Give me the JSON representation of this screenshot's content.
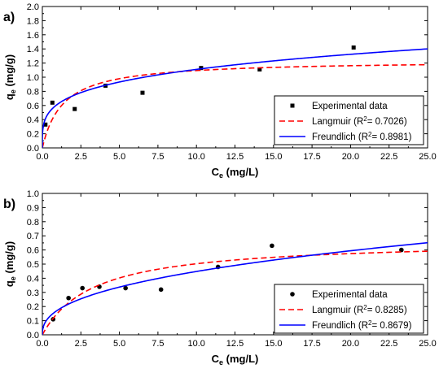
{
  "chart_data": [
    {
      "type": "scatter",
      "panel_label": "a)",
      "xlabel_main": "C",
      "xlabel_sub": "e",
      "xlabel_rest": " (mg/L)",
      "ylabel_main": "q",
      "ylabel_sub": "e",
      "ylabel_rest": " (mg/g)",
      "xlim": [
        0,
        25
      ],
      "ylim": [
        0,
        2.0
      ],
      "xticks": [
        "0.0",
        "2.5",
        "5.0",
        "7.5",
        "10.0",
        "12.5",
        "15.0",
        "17.5",
        "20.0",
        "22.5",
        "25.0"
      ],
      "yticks": [
        "0.0",
        "0.2",
        "0.4",
        "0.6",
        "0.8",
        "1.0",
        "1.2",
        "1.4",
        "1.6",
        "1.8",
        "2.0"
      ],
      "grid": false,
      "legend_position": "bottom-right",
      "marker": "square",
      "series": [
        {
          "name": "Experimental data",
          "kind": "points",
          "x": [
            0.2,
            0.65,
            2.1,
            4.1,
            6.5,
            10.3,
            14.1,
            20.2
          ],
          "y": [
            0.33,
            0.64,
            0.55,
            0.88,
            0.78,
            1.13,
            1.11,
            1.42
          ]
        },
        {
          "name": "Langmuir (R",
          "name_sup": "2",
          "name_rest": "= 0.7026)",
          "kind": "langmuir",
          "color": "#ff0000",
          "qmax": 1.24,
          "KL": 0.75
        },
        {
          "name": "Freundlich (R",
          "name_sup": "2",
          "name_rest": "= 0.8981)",
          "kind": "freundlich",
          "color": "#0000ff",
          "KF": 0.62,
          "n": 3.95
        }
      ]
    },
    {
      "type": "scatter",
      "panel_label": "b)",
      "xlabel_main": "C",
      "xlabel_sub": "e",
      "xlabel_rest": " (mg/L)",
      "ylabel_main": "q",
      "ylabel_sub": "e",
      "ylabel_rest": " (mg/g)",
      "xlim": [
        0,
        25
      ],
      "ylim": [
        0,
        1.0
      ],
      "xticks": [
        "0.0",
        "2.5",
        "5.0",
        "7.5",
        "10.0",
        "12.5",
        "15.0",
        "17.5",
        "20.0",
        "22.5",
        "25.0"
      ],
      "yticks": [
        "0.0",
        "0.1",
        "0.2",
        "0.3",
        "0.4",
        "0.5",
        "0.6",
        "0.7",
        "0.8",
        "0.9",
        "1.0"
      ],
      "grid": false,
      "legend_position": "bottom-right",
      "marker": "circle",
      "series": [
        {
          "name": "Experimental data",
          "kind": "points",
          "x": [
            0.7,
            1.7,
            2.6,
            3.7,
            5.4,
            7.7,
            11.4,
            14.9,
            23.3
          ],
          "y": [
            0.11,
            0.26,
            0.33,
            0.34,
            0.33,
            0.32,
            0.48,
            0.63,
            0.6
          ]
        },
        {
          "name": "Langmuir (R",
          "name_sup": "2",
          "name_rest": "= 0.8285)",
          "kind": "langmuir",
          "color": "#ff0000",
          "qmax": 0.67,
          "KL": 0.3
        },
        {
          "name": "Freundlich (R",
          "name_sup": "2",
          "name_rest": "= 0.8679)",
          "kind": "freundlich",
          "color": "#0000ff",
          "KF": 0.175,
          "n": 2.45
        }
      ]
    }
  ]
}
